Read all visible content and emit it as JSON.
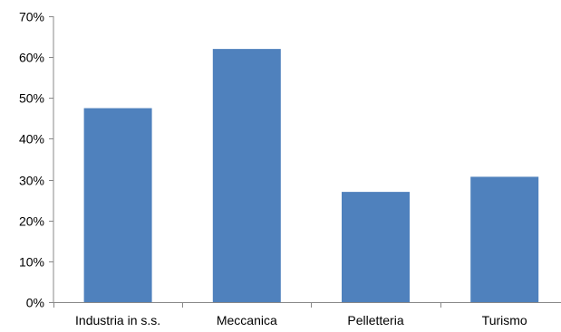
{
  "chart_data": {
    "type": "bar",
    "title": "",
    "xlabel": "",
    "ylabel": "",
    "categories": [
      "Industria in s.s.",
      "Meccanica",
      "Pelletteria",
      "Turismo"
    ],
    "series": [
      {
        "values": [
          0.475,
          0.62,
          0.27,
          0.307
        ],
        "color": "#4F81BD"
      }
    ],
    "ylim": [
      0,
      0.7
    ],
    "yticks": [
      0,
      0.1,
      0.2,
      0.3,
      0.4,
      0.5,
      0.6,
      0.7
    ],
    "ytick_labels": [
      "0%",
      "10%",
      "20%",
      "30%",
      "40%",
      "50%",
      "60%",
      "70%"
    ],
    "grid": false,
    "legend": "none",
    "colors": {
      "bar": "#4F81BD",
      "axis": "#888888",
      "text": "#000000"
    }
  }
}
